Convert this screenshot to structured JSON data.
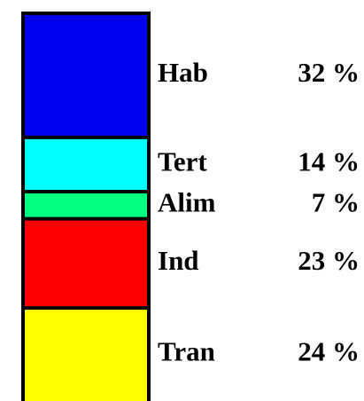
{
  "chart_data": {
    "type": "stacked_bar",
    "categories": [
      "Hab",
      "Tert",
      "Alim",
      "Ind",
      "Tran"
    ],
    "values": [
      32,
      14,
      7,
      23,
      24
    ],
    "value_labels": [
      "32 %",
      "14 %",
      "7 %",
      "23 %",
      "24 %"
    ],
    "colors": [
      "#0000ee",
      "#00ffff",
      "#00ff80",
      "#ff0000",
      "#ffff00"
    ],
    "ylim": [
      0,
      100
    ]
  }
}
